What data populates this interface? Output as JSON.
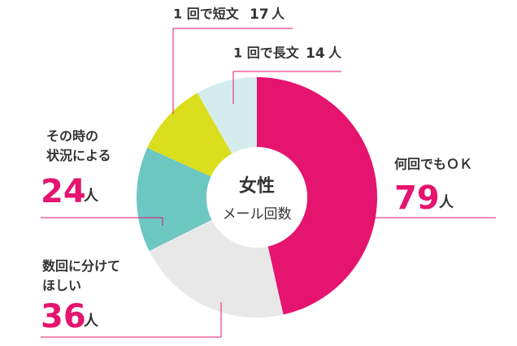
{
  "chart_data": {
    "type": "donut",
    "title": "女性",
    "subtitle": "メール回数",
    "unit": "人",
    "categories": [
      "何回でもＯＫ",
      "数回に分けて\nほしい",
      "その時の\n状況による",
      "1 回で短文",
      "1 回で長文"
    ],
    "values": [
      79,
      36,
      24,
      17,
      14
    ],
    "colors": [
      "#e5146f",
      "#e8e8e8",
      "#6cc7c3",
      "#dade1c",
      "#d5ecec"
    ]
  }
}
